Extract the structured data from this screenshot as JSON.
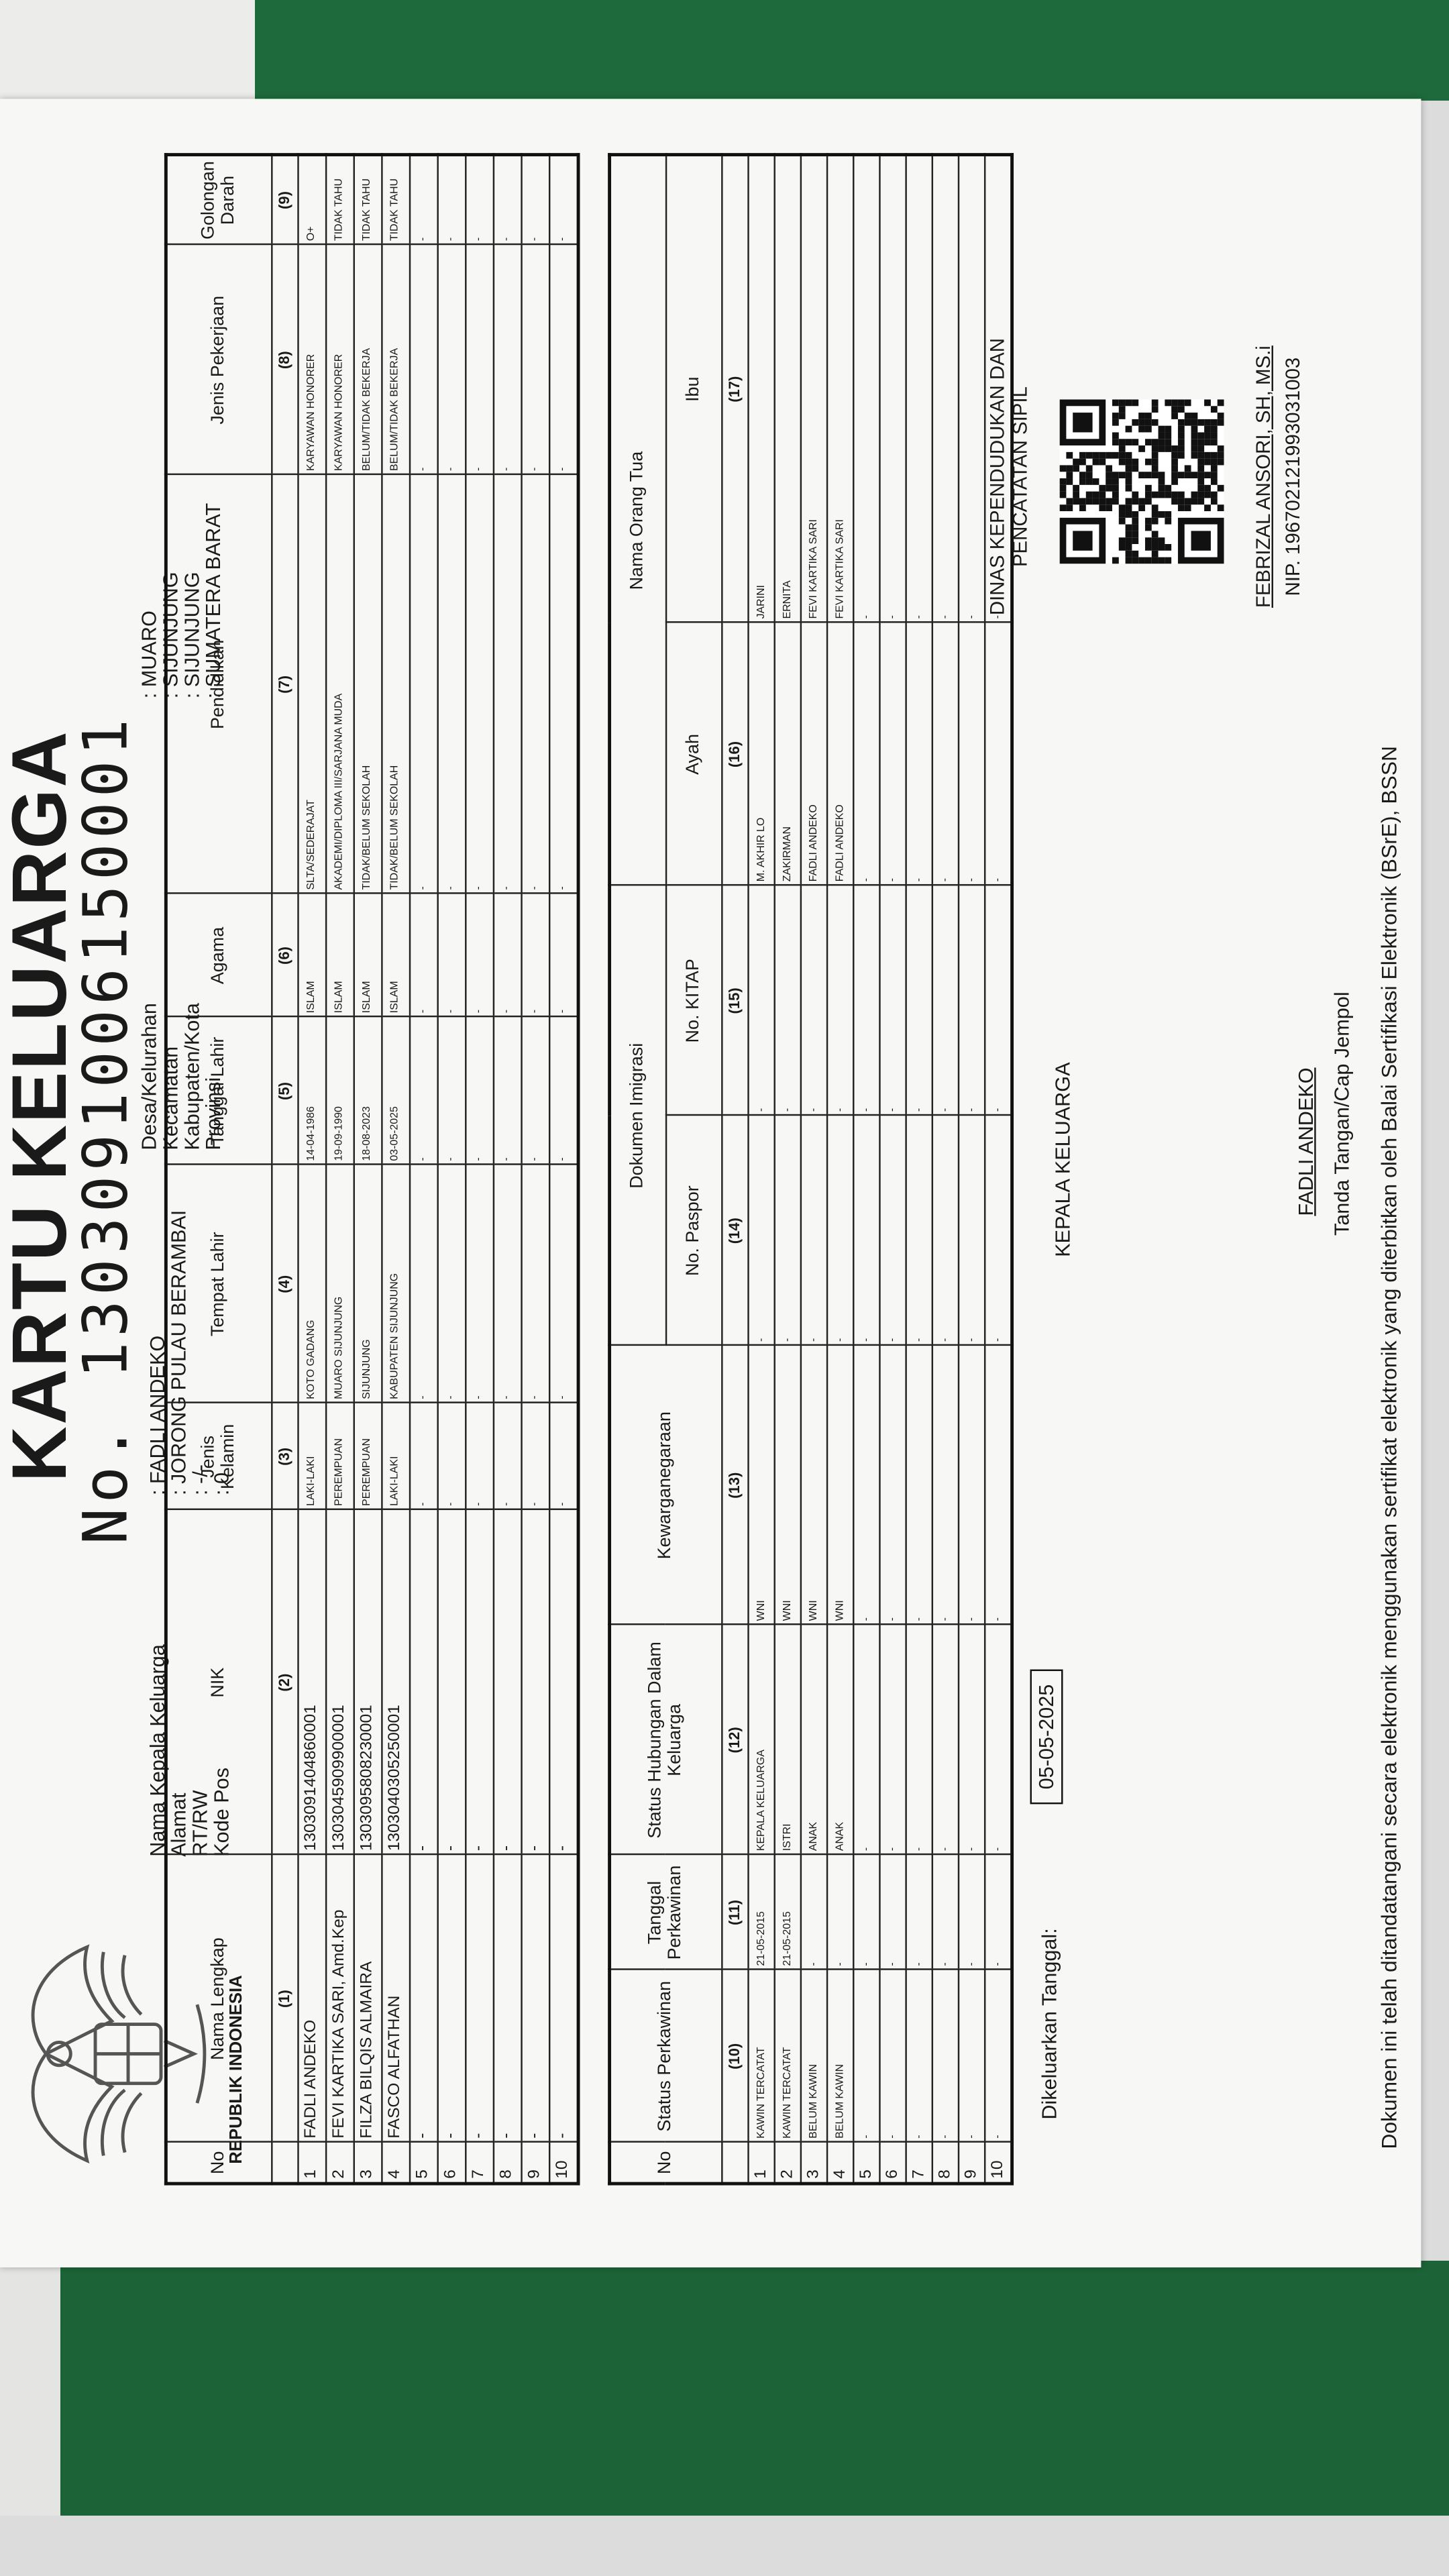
{
  "header": {
    "emblem_caption": "REPUBLIK INDONESIA",
    "title": "KARTU KELUARGA",
    "number": "No. 1303091006150001",
    "left": [
      {
        "label": "Nama Kepala Keluarga",
        "value": ": FADLI ANDEKO"
      },
      {
        "label": "Alamat",
        "value": ": JORONG PULAU BERAMBAI"
      },
      {
        "label": "RT/RW",
        "value": ": -/-"
      },
      {
        "label": "Kode Pos",
        "value": ": 0"
      }
    ],
    "right": [
      {
        "label": "Desa/Kelurahan",
        "value": ": MUARO"
      },
      {
        "label": "Kecamatan",
        "value": ": SIJUNJUNG"
      },
      {
        "label": "Kabupaten/Kota",
        "value": ": SIJUNJUNG"
      },
      {
        "label": "Provinsi",
        "value": ": SUMATERA BARAT"
      }
    ]
  },
  "table1": {
    "headers": [
      "No",
      "Nama Lengkap",
      "NIK",
      "Jenis Kelamin",
      "Tempat Lahir",
      "Tanggal Lahir",
      "Agama",
      "Pendidikan",
      "Jenis Pekerjaan",
      "Golongan Darah"
    ],
    "numbers": [
      "(1)",
      "(2)",
      "(3)",
      "(4)",
      "(5)",
      "(6)",
      "(7)",
      "(8)",
      "(9)"
    ],
    "rows": [
      [
        "1",
        "FADLI ANDEKO",
        "1303091404860001",
        "LAKI-LAKI",
        "KOTO GADANG",
        "14-04-1986",
        "ISLAM",
        "SLTA/SEDERAJAT",
        "KARYAWAN HONORER",
        "O+"
      ],
      [
        "2",
        "FEVI KARTIKA SARI, Amd.Kep",
        "1303045909900001",
        "PEREMPUAN",
        "MUARO SIJUNJUNG",
        "19-09-1990",
        "ISLAM",
        "AKADEMI/DIPLOMA III/SARJANA MUDA",
        "KARYAWAN HONORER",
        "TIDAK TAHU"
      ],
      [
        "3",
        "FILZA BILQIS ALMAIRA",
        "1303095808230001",
        "PEREMPUAN",
        "SIJUNJUNG",
        "18-08-2023",
        "ISLAM",
        "TIDAK/BELUM SEKOLAH",
        "BELUM/TIDAK BEKERJA",
        "TIDAK TAHU"
      ],
      [
        "4",
        "FASCO ALFATHAN",
        "1303040305250001",
        "LAKI-LAKI",
        "KABUPATEN SIJUNJUNG",
        "03-05-2025",
        "ISLAM",
        "TIDAK/BELUM SEKOLAH",
        "BELUM/TIDAK BEKERJA",
        "TIDAK TAHU"
      ],
      [
        "5",
        "-",
        "-",
        "-",
        "-",
        "-",
        "-",
        "-",
        "-",
        "-"
      ],
      [
        "6",
        "-",
        "-",
        "-",
        "-",
        "-",
        "-",
        "-",
        "-",
        "-"
      ],
      [
        "7",
        "-",
        "-",
        "-",
        "-",
        "-",
        "-",
        "-",
        "-",
        "-"
      ],
      [
        "8",
        "-",
        "-",
        "-",
        "-",
        "-",
        "-",
        "-",
        "-",
        "-"
      ],
      [
        "9",
        "-",
        "-",
        "-",
        "-",
        "-",
        "-",
        "-",
        "-",
        "-"
      ],
      [
        "10",
        "-",
        "-",
        "-",
        "-",
        "-",
        "-",
        "-",
        "-",
        "-"
      ]
    ]
  },
  "table2": {
    "headers": [
      "No",
      "Status Perkawinan",
      "Tanggal Perkawinan",
      "Status Hubungan Dalam Keluarga",
      "Kewarganegaraan",
      "No. Paspor",
      "No. KITAP",
      "Ayah",
      "Ibu"
    ],
    "groups": [
      "Dokumen Imigrasi",
      "Nama Orang Tua"
    ],
    "numbers": [
      "(10)",
      "(11)",
      "(12)",
      "(13)",
      "(14)",
      "(15)",
      "(16)",
      "(17)"
    ],
    "rows": [
      [
        "1",
        "KAWIN TERCATAT",
        "21-05-2015",
        "KEPALA KELUARGA",
        "WNI",
        "-",
        "-",
        "M. AKHIR LO",
        "JARINI"
      ],
      [
        "2",
        "KAWIN TERCATAT",
        "21-05-2015",
        "ISTRI",
        "WNI",
        "-",
        "-",
        "ZAKIRMAN",
        "ERNITA"
      ],
      [
        "3",
        "BELUM KAWIN",
        "-",
        "ANAK",
        "WNI",
        "-",
        "-",
        "FADLI ANDEKO",
        "FEVI KARTIKA SARI"
      ],
      [
        "4",
        "BELUM KAWIN",
        "-",
        "ANAK",
        "WNI",
        "-",
        "-",
        "FADLI ANDEKO",
        "FEVI KARTIKA SARI"
      ],
      [
        "5",
        "-",
        "-",
        "-",
        "-",
        "-",
        "-",
        "-",
        "-"
      ],
      [
        "6",
        "-",
        "-",
        "-",
        "-",
        "-",
        "-",
        "-",
        "-"
      ],
      [
        "7",
        "-",
        "-",
        "-",
        "-",
        "-",
        "-",
        "-",
        "-"
      ],
      [
        "8",
        "-",
        "-",
        "-",
        "-",
        "-",
        "-",
        "-",
        "-"
      ],
      [
        "9",
        "-",
        "-",
        "-",
        "-",
        "-",
        "-",
        "-",
        "-"
      ],
      [
        "10",
        "-",
        "-",
        "-",
        "-",
        "-",
        "-",
        "-",
        "-"
      ]
    ]
  },
  "footer": {
    "issued_label": "Dikeluarkan Tanggal:",
    "issued_date": "05-05-2025",
    "signer_role": "KEPALA KELUARGA",
    "signer_name": "FADLI ANDEKO",
    "signer_note": "Tanda Tangan/Cap Jempol",
    "agency": [
      "DINAS KEPENDUDUKAN DAN",
      "PENCATATAN SIPIL"
    ],
    "official_name": "FEBRIZAL ANSORI, SH, MS.i",
    "official_nip": "NIP. 196702121993031003",
    "disclaimer": "Dokumen ini telah ditandatangani secara elektronik menggunakan sertifikat elektronik yang diterbitkan oleh Balai Sertifikasi Elektronik (BSrE), BSSN"
  }
}
